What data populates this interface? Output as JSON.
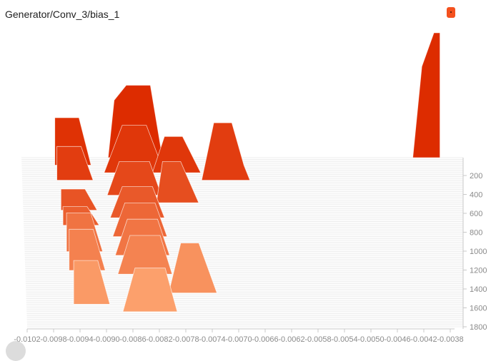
{
  "header": {
    "title": "Generator/Conv_3/bias_1"
  },
  "chart_data": {
    "type": "histogram-offset",
    "title": "Generator/Conv_3/bias_1",
    "x_ticks": [
      "-0.0102",
      "-0.0098",
      "-0.0094",
      "-0.0090",
      "-0.0086",
      "-0.0082",
      "-0.0078",
      "-0.0074",
      "-0.0070",
      "-0.0066",
      "-0.0062",
      "-0.0058",
      "-0.0054",
      "-0.0050",
      "-0.0046",
      "-0.0042",
      "-0.0038"
    ],
    "y_ticks": [
      "200",
      "400",
      "600",
      "800",
      "1000",
      "1200",
      "1400",
      "1600",
      "1800"
    ],
    "xlim": [
      -0.0105,
      -0.0037
    ],
    "steps_range": [
      0,
      1800
    ],
    "colors": {
      "early": "#dd2c00",
      "late": "#ffab76"
    },
    "series": [
      {
        "step": 0,
        "bins": [
          [
            -0.00425,
            0
          ],
          [
            -0.0041,
            0.73
          ],
          [
            -0.0039,
            1.0
          ],
          [
            -0.0038,
            1.0
          ]
        ]
      },
      {
        "step": 0,
        "bins": [
          [
            -0.0093,
            0
          ],
          [
            -0.0092,
            0.46
          ],
          [
            -0.009,
            0.58
          ],
          [
            -0.0086,
            0.58
          ],
          [
            -0.0084,
            0
          ]
        ]
      },
      {
        "step": 80,
        "bins": [
          [
            -0.0102,
            0.38
          ],
          [
            -0.0098,
            0.38
          ],
          [
            -0.0096,
            0
          ]
        ]
      },
      {
        "step": 160,
        "bins": [
          [
            -0.0094,
            0
          ],
          [
            -0.0091,
            0.38
          ],
          [
            -0.0087,
            0.38
          ],
          [
            -0.0084,
            0
          ]
        ]
      },
      {
        "step": 160,
        "bins": [
          [
            -0.0086,
            0
          ],
          [
            -0.0084,
            0.29
          ],
          [
            -0.0081,
            0.29
          ],
          [
            -0.0078,
            0
          ]
        ]
      },
      {
        "step": 240,
        "bins": [
          [
            -0.0102,
            0.27
          ],
          [
            -0.0098,
            0.27
          ],
          [
            -0.0096,
            0
          ]
        ]
      },
      {
        "step": 240,
        "bins": [
          [
            -0.0078,
            0
          ],
          [
            -0.0076,
            0.46
          ],
          [
            -0.0073,
            0.46
          ],
          [
            -0.0071,
            0.12
          ],
          [
            -0.007,
            0
          ]
        ]
      },
      {
        "step": 400,
        "bins": [
          [
            -0.0094,
            0
          ],
          [
            -0.0092,
            0.27
          ],
          [
            -0.0087,
            0.27
          ],
          [
            -0.0085,
            0
          ]
        ]
      },
      {
        "step": 480,
        "bins": [
          [
            -0.0086,
            0
          ],
          [
            -0.0085,
            0.33
          ],
          [
            -0.0082,
            0.33
          ],
          [
            -0.0079,
            0
          ]
        ]
      },
      {
        "step": 560,
        "bins": [
          [
            -0.0102,
            0.17
          ],
          [
            -0.0098,
            0.17
          ],
          [
            -0.0096,
            0
          ]
        ]
      },
      {
        "step": 640,
        "bins": [
          [
            -0.0094,
            0
          ],
          [
            -0.0092,
            0.25
          ],
          [
            -0.0087,
            0.25
          ],
          [
            -0.0085,
            0
          ]
        ]
      },
      {
        "step": 720,
        "bins": [
          [
            -0.0102,
            0.15
          ],
          [
            -0.0098,
            0.15
          ],
          [
            -0.0096,
            0
          ]
        ]
      },
      {
        "step": 840,
        "bins": [
          [
            -0.0094,
            0
          ],
          [
            -0.0092,
            0.27
          ],
          [
            -0.0087,
            0.27
          ],
          [
            -0.0085,
            0
          ]
        ]
      },
      {
        "step": 1000,
        "bins": [
          [
            -0.0102,
            0.31
          ],
          [
            -0.0098,
            0.31
          ],
          [
            -0.0096,
            0
          ]
        ]
      },
      {
        "step": 1040,
        "bins": [
          [
            -0.0094,
            0
          ],
          [
            -0.0092,
            0.29
          ],
          [
            -0.0087,
            0.29
          ],
          [
            -0.0085,
            0
          ]
        ]
      },
      {
        "step": 1200,
        "bins": [
          [
            -0.0102,
            0.33
          ],
          [
            -0.0098,
            0.33
          ],
          [
            -0.0096,
            0
          ]
        ]
      },
      {
        "step": 1240,
        "bins": [
          [
            -0.0094,
            0
          ],
          [
            -0.0092,
            0.31
          ],
          [
            -0.0087,
            0.31
          ],
          [
            -0.0085,
            0
          ]
        ]
      },
      {
        "step": 1440,
        "bins": [
          [
            -0.0086,
            0
          ],
          [
            -0.0084,
            0.4
          ],
          [
            -0.0081,
            0.4
          ],
          [
            -0.0078,
            0
          ]
        ]
      },
      {
        "step": 1560,
        "bins": [
          [
            -0.0102,
            0.35
          ],
          [
            -0.0098,
            0.35
          ],
          [
            -0.0096,
            0
          ]
        ]
      },
      {
        "step": 1640,
        "bins": [
          [
            -0.0094,
            0
          ],
          [
            -0.0092,
            0.35
          ],
          [
            -0.0087,
            0.35
          ],
          [
            -0.0085,
            0
          ]
        ]
      }
    ]
  }
}
